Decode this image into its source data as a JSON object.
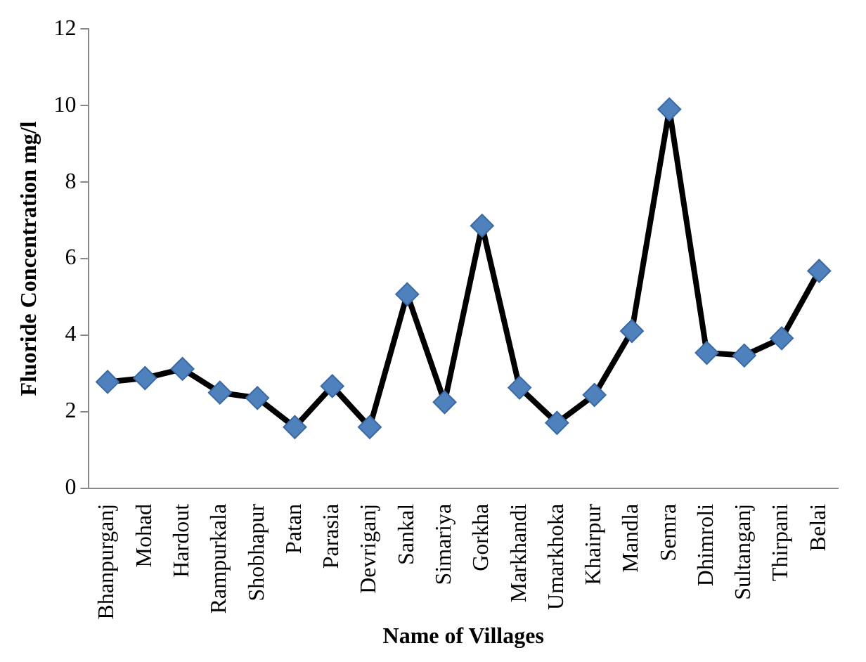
{
  "chart_data": {
    "type": "line",
    "xlabel": "Name of Villages",
    "ylabel": "Fluoride Concentration mg/l",
    "categories": [
      "Bhanpurganj",
      "Mohad",
      "Hardout",
      "Rampurkala",
      "Shobhapur",
      "Patan",
      "Parasia",
      "Devriganj",
      "Sankal",
      "Simariya",
      "Gorkha",
      "Markhandi",
      "Umarkhoka",
      "Khairpur",
      "Mandla",
      "Semra",
      "Dhimroli",
      "Sultanganj",
      "Thirpani",
      "Belai"
    ],
    "series": [
      {
        "color": "#000000",
        "values": [
          2.78,
          2.88,
          3.12,
          2.5,
          2.36,
          1.6,
          2.67,
          1.6,
          5.07,
          2.25,
          6.86,
          2.63,
          1.71,
          2.44,
          4.11,
          9.9,
          3.54,
          3.47,
          3.92,
          5.68
        ]
      }
    ],
    "ylim": [
      0,
      12
    ],
    "yticks": [
      0,
      2,
      4,
      6,
      8,
      10,
      12
    ],
    "grid": false,
    "legend": false,
    "marker": "diamond",
    "line_style": "solid"
  }
}
